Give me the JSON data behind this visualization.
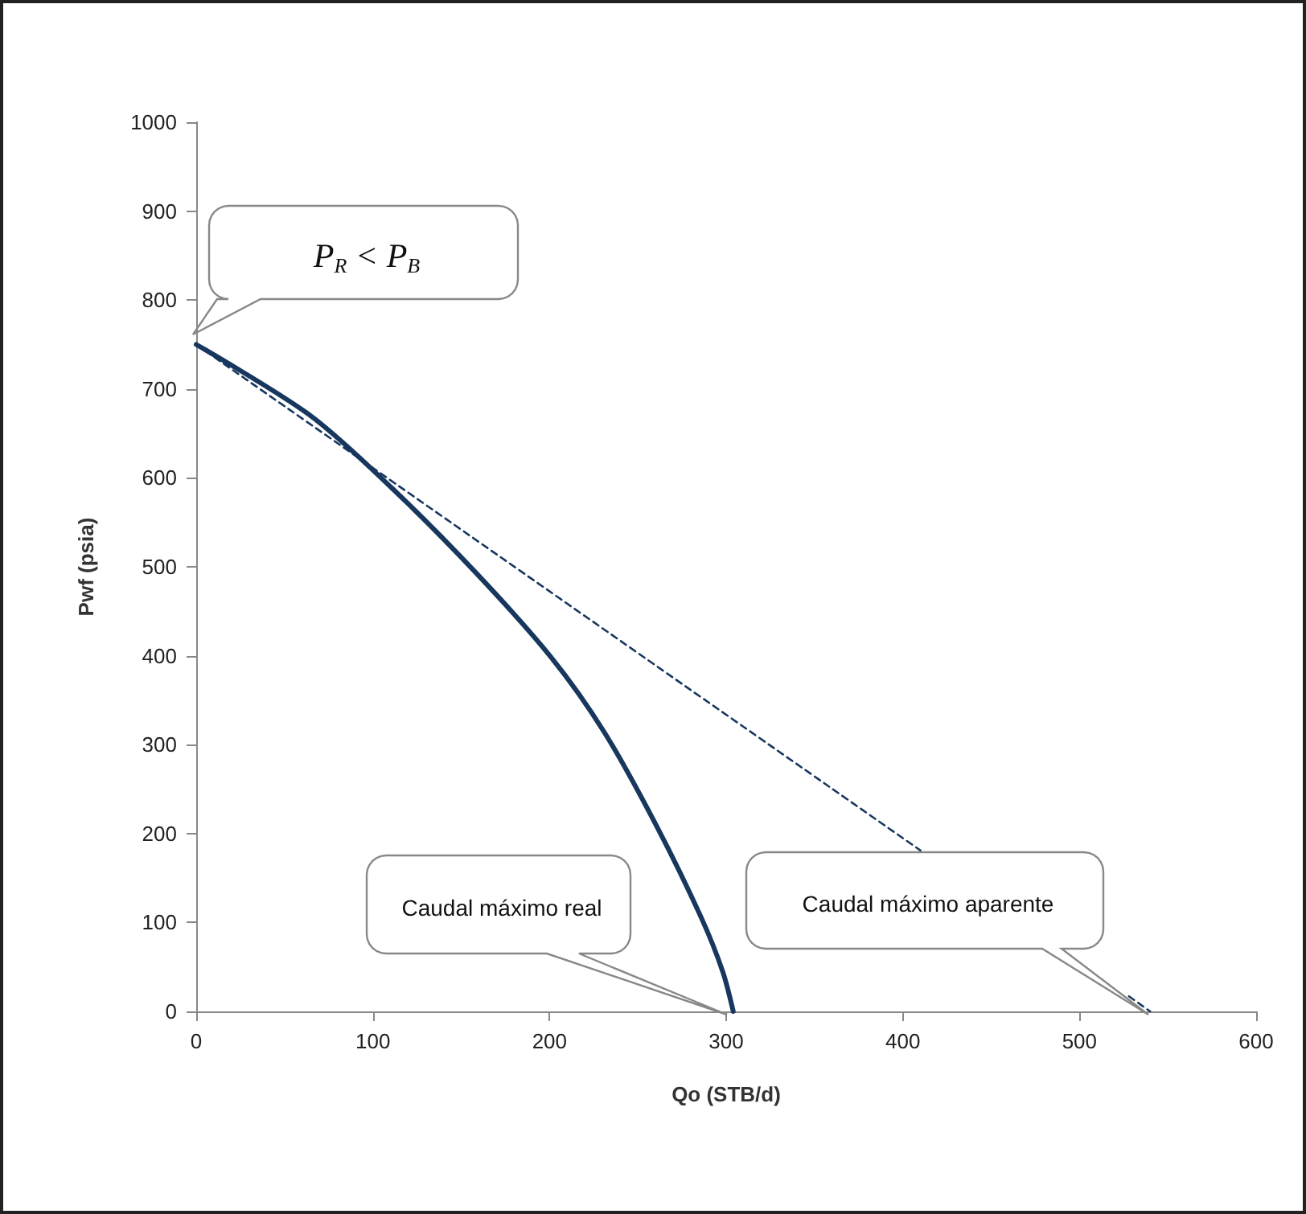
{
  "chart_data": {
    "type": "line",
    "xlabel": "Qo (STB/d)",
    "ylabel": "Pwf (psia)",
    "xlim": [
      0,
      600
    ],
    "xticks": [
      0,
      100,
      200,
      300,
      400,
      500,
      600
    ],
    "ylim": [
      0,
      1000
    ],
    "yticks": [
      0,
      100,
      200,
      300,
      400,
      500,
      600,
      700,
      800,
      900,
      1000
    ],
    "grid": false,
    "marker": "none",
    "series": [
      {
        "color": "#17375e",
        "line_style": "solid",
        "x": [
          0,
          64,
          110,
          158,
          201,
          231,
          261,
          286,
          298,
          304
        ],
        "values": [
          750,
          671,
          590,
          494,
          398,
          314,
          207,
          105,
          45,
          0
        ]
      },
      {
        "color": "#17375e",
        "line_style": "dashed",
        "x": [
          0,
          410,
          null,
          528,
          540
        ],
        "values": [
          750,
          181,
          null,
          17,
          0
        ]
      }
    ],
    "annotations": [
      "P$_{R}$ < P$_{B}$",
      "Caudal máximo real",
      "Caudal máximo aparente"
    ]
  }
}
